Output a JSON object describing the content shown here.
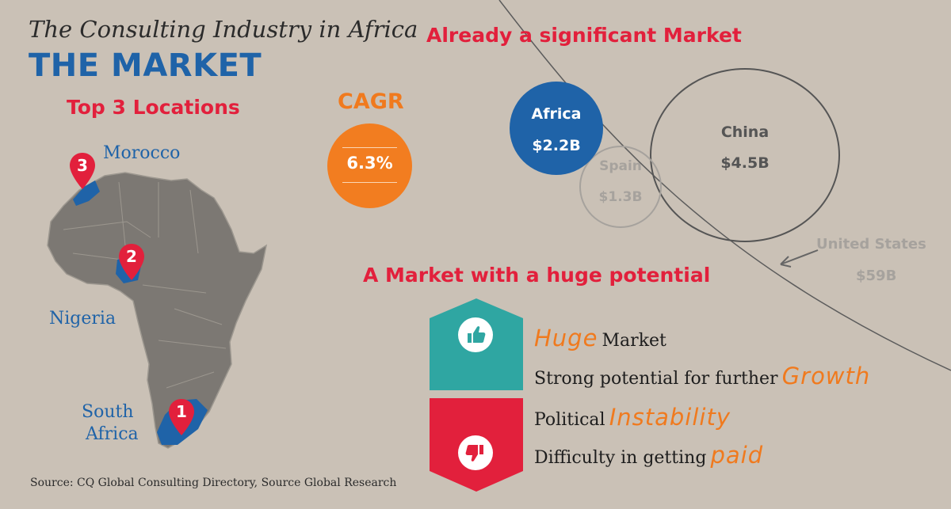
{
  "header": {
    "pre_title": "The Consulting Industry in Africa",
    "title": "THE MARKET"
  },
  "locations": {
    "heading": "Top 3 Locations",
    "items": [
      {
        "rank": "3",
        "name": "Morocco"
      },
      {
        "rank": "2",
        "name": "Nigeria"
      },
      {
        "rank": "1",
        "name_line1": "South",
        "name_line2": "Africa"
      }
    ]
  },
  "cagr": {
    "label": "CAGR",
    "value": "6.3%"
  },
  "market": {
    "heading": "Already a significant Market",
    "bubbles": [
      {
        "name": "Africa",
        "value": "$2.2B",
        "color": "#1f63a8"
      },
      {
        "name": "Spain",
        "value": "$1.3B",
        "color": "#a6a29d"
      },
      {
        "name": "China",
        "value": "$4.5B",
        "color": "#555555"
      },
      {
        "name": "United States",
        "value": "$59B",
        "color": "#a6a29d"
      }
    ]
  },
  "potential": {
    "heading": "A Market with a huge potential",
    "pros": {
      "icon": "thumbs-up-icon",
      "color": "#2fa6a2",
      "line1": {
        "highlight": "Huge",
        "rest": "Market"
      },
      "line2": {
        "text": "Strong potential for further",
        "highlight": "Growth"
      }
    },
    "cons": {
      "icon": "thumbs-down-icon",
      "color": "#e2203c",
      "line1": {
        "text": "Political",
        "highlight": "Instability"
      },
      "line2": {
        "text": "Difficulty in getting",
        "highlight": "paid"
      }
    }
  },
  "source": "Source: CQ Global Consulting Directory, Source Global Research"
}
